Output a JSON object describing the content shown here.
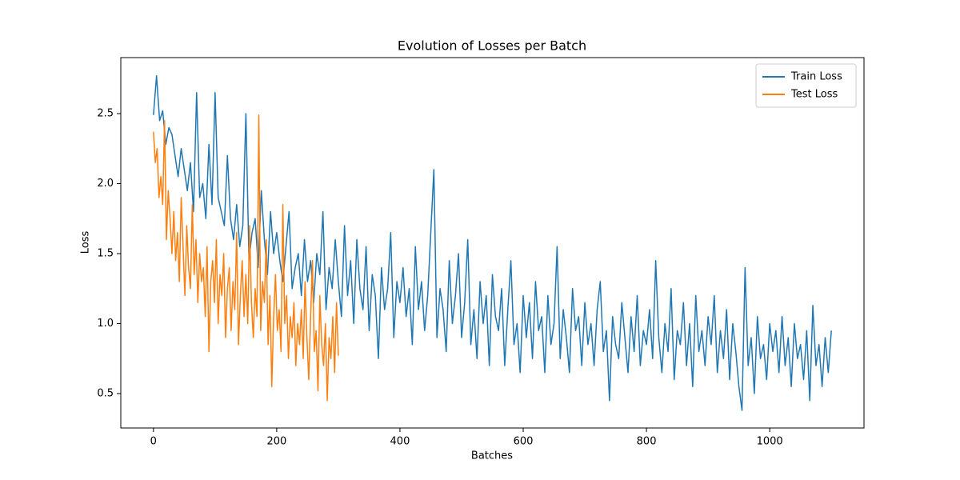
{
  "chart_data": {
    "type": "line",
    "title": "Evolution of Losses per Batch",
    "xlabel": "Batches",
    "ylabel": "Loss",
    "xlim": [
      -53,
      1153
    ],
    "ylim": [
      0.254,
      2.9
    ],
    "xticks": [
      0,
      200,
      400,
      600,
      800,
      1000
    ],
    "yticks": [
      0.5,
      {
        "value": 1.0,
        "label": "1.0"
      },
      1.5,
      {
        "value": 2.0,
        "label": "2.0"
      },
      2.5
    ],
    "grid": false,
    "legend": "upper right",
    "series": [
      {
        "name": "Train Loss",
        "color": "#1f77b4",
        "x": [
          0,
          5,
          10,
          15,
          20,
          25,
          30,
          35,
          40,
          45,
          50,
          55,
          60,
          65,
          70,
          75,
          80,
          85,
          90,
          95,
          100,
          105,
          110,
          115,
          120,
          125,
          130,
          135,
          140,
          145,
          150,
          155,
          160,
          165,
          170,
          175,
          180,
          185,
          190,
          195,
          200,
          205,
          210,
          215,
          220,
          225,
          230,
          235,
          240,
          245,
          250,
          255,
          260,
          265,
          270,
          275,
          280,
          285,
          290,
          295,
          300,
          305,
          310,
          315,
          320,
          325,
          330,
          335,
          340,
          345,
          350,
          355,
          360,
          365,
          370,
          375,
          380,
          385,
          390,
          395,
          400,
          405,
          410,
          415,
          420,
          425,
          430,
          435,
          440,
          445,
          450,
          455,
          460,
          465,
          470,
          475,
          480,
          485,
          490,
          495,
          500,
          505,
          510,
          515,
          520,
          525,
          530,
          535,
          540,
          545,
          550,
          555,
          560,
          565,
          570,
          575,
          580,
          585,
          590,
          595,
          600,
          605,
          610,
          615,
          620,
          625,
          630,
          635,
          640,
          645,
          650,
          655,
          660,
          665,
          670,
          675,
          680,
          685,
          690,
          695,
          700,
          705,
          710,
          715,
          720,
          725,
          730,
          735,
          740,
          745,
          750,
          755,
          760,
          765,
          770,
          775,
          780,
          785,
          790,
          795,
          800,
          805,
          810,
          815,
          820,
          825,
          830,
          835,
          840,
          845,
          850,
          855,
          860,
          865,
          870,
          875,
          880,
          885,
          890,
          895,
          900,
          905,
          910,
          915,
          920,
          925,
          930,
          935,
          940,
          945,
          950,
          955,
          960,
          965,
          970,
          975,
          980,
          985,
          990,
          995,
          1000,
          1005,
          1010,
          1015,
          1020,
          1025,
          1030,
          1035,
          1040,
          1045,
          1050,
          1055,
          1060,
          1065,
          1070,
          1075,
          1080,
          1085,
          1090,
          1095,
          1100
        ],
        "values": [
          2.49,
          2.77,
          2.45,
          2.52,
          2.28,
          2.4,
          2.35,
          2.2,
          2.05,
          2.25,
          2.1,
          1.95,
          2.15,
          1.8,
          2.65,
          1.9,
          2.0,
          1.75,
          2.28,
          1.85,
          2.65,
          1.9,
          1.8,
          1.7,
          2.2,
          1.75,
          1.6,
          1.85,
          1.55,
          1.7,
          2.5,
          1.45,
          1.65,
          1.75,
          1.4,
          1.95,
          1.6,
          1.35,
          1.8,
          1.5,
          1.65,
          1.45,
          1.3,
          1.55,
          1.8,
          1.25,
          1.4,
          1.5,
          1.2,
          1.6,
          1.3,
          1.45,
          1.15,
          1.5,
          1.35,
          1.8,
          1.1,
          1.4,
          1.25,
          1.6,
          1.3,
          1.05,
          1.7,
          1.2,
          1.45,
          1.0,
          1.6,
          1.25,
          1.1,
          1.55,
          0.95,
          1.35,
          1.2,
          0.75,
          1.4,
          1.1,
          1.25,
          1.65,
          0.9,
          1.3,
          1.15,
          1.4,
          1.05,
          1.25,
          0.85,
          1.55,
          1.1,
          1.3,
          0.95,
          1.2,
          1.65,
          2.1,
          0.9,
          1.25,
          1.1,
          0.8,
          1.45,
          1.0,
          1.2,
          1.5,
          0.9,
          1.15,
          1.6,
          0.85,
          1.1,
          0.75,
          1.3,
          1.0,
          1.2,
          0.7,
          1.35,
          1.05,
          0.95,
          1.25,
          0.7,
          1.1,
          1.45,
          0.85,
          1.0,
          0.65,
          1.2,
          0.9,
          1.15,
          0.75,
          1.3,
          0.95,
          1.05,
          0.65,
          1.2,
          0.85,
          1.0,
          1.55,
          0.75,
          1.1,
          0.9,
          0.65,
          1.25,
          0.95,
          1.05,
          0.7,
          1.15,
          0.85,
          1.0,
          0.7,
          1.1,
          1.3,
          0.8,
          0.95,
          0.45,
          1.05,
          0.85,
          0.75,
          1.15,
          0.9,
          0.65,
          1.05,
          0.8,
          1.2,
          0.7,
          0.95,
          0.85,
          1.1,
          0.75,
          1.45,
          0.9,
          0.65,
          1.0,
          0.8,
          1.25,
          0.6,
          0.95,
          0.85,
          1.15,
          0.7,
          1.0,
          0.55,
          1.2,
          0.8,
          0.95,
          0.7,
          1.05,
          0.85,
          1.2,
          0.65,
          0.95,
          0.75,
          1.1,
          0.6,
          1.0,
          0.8,
          0.55,
          0.38,
          1.4,
          0.7,
          0.9,
          0.5,
          1.05,
          0.75,
          0.85,
          0.6,
          1.0,
          0.8,
          0.95,
          0.65,
          1.05,
          0.7,
          0.9,
          0.55,
          1.0,
          0.75,
          0.85,
          0.6,
          0.95,
          0.45,
          1.13,
          0.7,
          0.85,
          0.55,
          0.9,
          0.65,
          0.95
        ]
      },
      {
        "name": "Test Loss",
        "color": "#ff7f0e",
        "x": [
          0,
          3,
          6,
          9,
          12,
          15,
          18,
          21,
          24,
          27,
          30,
          33,
          36,
          39,
          42,
          45,
          48,
          51,
          54,
          57,
          60,
          63,
          66,
          69,
          72,
          75,
          78,
          81,
          84,
          87,
          90,
          93,
          96,
          99,
          102,
          105,
          108,
          111,
          114,
          117,
          120,
          123,
          126,
          129,
          132,
          135,
          138,
          141,
          144,
          147,
          150,
          153,
          156,
          159,
          162,
          165,
          168,
          171,
          174,
          177,
          180,
          183,
          186,
          189,
          192,
          195,
          198,
          201,
          204,
          207,
          210,
          213,
          216,
          219,
          222,
          225,
          228,
          231,
          234,
          237,
          240,
          243,
          246,
          249,
          252,
          255,
          258,
          261,
          264,
          267,
          270,
          273,
          276,
          279,
          282,
          285,
          288,
          291,
          294,
          297,
          300
        ],
        "values": [
          2.37,
          2.15,
          2.25,
          1.9,
          2.05,
          1.85,
          2.45,
          1.6,
          1.95,
          1.75,
          1.5,
          1.8,
          1.45,
          1.65,
          1.3,
          1.9,
          1.55,
          1.2,
          1.7,
          1.4,
          1.25,
          1.85,
          1.35,
          1.6,
          1.15,
          1.5,
          1.3,
          1.4,
          1.05,
          1.55,
          0.8,
          1.3,
          1.45,
          1.15,
          1.6,
          1.0,
          1.35,
          1.2,
          1.5,
          0.9,
          1.25,
          1.4,
          0.95,
          1.3,
          1.1,
          1.65,
          0.85,
          1.2,
          1.45,
          1.05,
          1.35,
          1.0,
          1.7,
          1.15,
          0.9,
          1.25,
          1.05,
          2.49,
          0.95,
          1.3,
          1.15,
          1.6,
          0.85,
          1.2,
          0.55,
          1.05,
          1.35,
          0.95,
          1.1,
          0.8,
          1.85,
          1.0,
          1.2,
          0.75,
          1.05,
          0.9,
          1.15,
          0.7,
          1.0,
          0.85,
          1.1,
          0.75,
          1.3,
          0.9,
          0.6,
          1.05,
          1.45,
          0.8,
          0.95,
          0.52,
          1.2,
          0.85,
          0.7,
          1.0,
          0.45,
          0.9,
          0.75,
          1.05,
          0.65,
          1.15,
          0.77
        ]
      }
    ]
  }
}
